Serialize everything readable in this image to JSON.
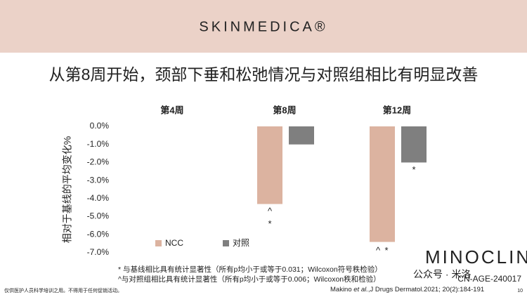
{
  "header": {
    "brand": "SKINMEDICA®"
  },
  "chart_data": {
    "type": "bar",
    "title": "从第8周开始，颈部下垂和松弛情况与对照组相比有明显改善",
    "y_label": "相对于基线的平均变化%",
    "categories": [
      "第4周",
      "第8周",
      "第12周"
    ],
    "series": [
      {
        "name": "NCC",
        "color": "#dcb3a0",
        "values": [
          null,
          -4.3,
          -6.4
        ],
        "significance": [
          null,
          [
            "^",
            "*"
          ],
          [
            "^",
            "*"
          ]
        ]
      },
      {
        "name": "对照",
        "color": "#7f7f7f",
        "values": [
          null,
          -1.0,
          -2.0
        ],
        "significance": [
          null,
          null,
          [
            "*"
          ]
        ]
      }
    ],
    "ylim": [
      -7,
      0
    ],
    "yticks": [
      {
        "value": 0,
        "label": "0.0%"
      },
      {
        "value": -1,
        "label": "-1.0%"
      },
      {
        "value": -2,
        "label": "-2.0%"
      },
      {
        "value": -3,
        "label": "-3.0%"
      },
      {
        "value": -4,
        "label": "-4.0%"
      },
      {
        "value": -5,
        "label": "-5.0%"
      },
      {
        "value": -6,
        "label": "-6.0%"
      },
      {
        "value": -7,
        "label": "-7.0%"
      }
    ],
    "legend": "bottom-left"
  },
  "footnotes": [
    "* 与基线相比具有统计显著性（所有p均小于或等于0.031；Wilcoxon符号秩检验）",
    "^与对照组相比具有统计显著性（所有p均小于或等于0.006；Wilcoxon秩和检验）"
  ],
  "citation": [
    "Makino ",
    "et al.",
    ",J Drugs Dermatol.2021; 20(2):184-191"
  ],
  "code": "CN-AGE-240017",
  "disclaimer": "仅供医护人员科学培训之用。不得用于任何促销活动。",
  "page_number": "10",
  "watermark": [
    "MINOCLINIC",
    "公众号 · 米洛"
  ]
}
